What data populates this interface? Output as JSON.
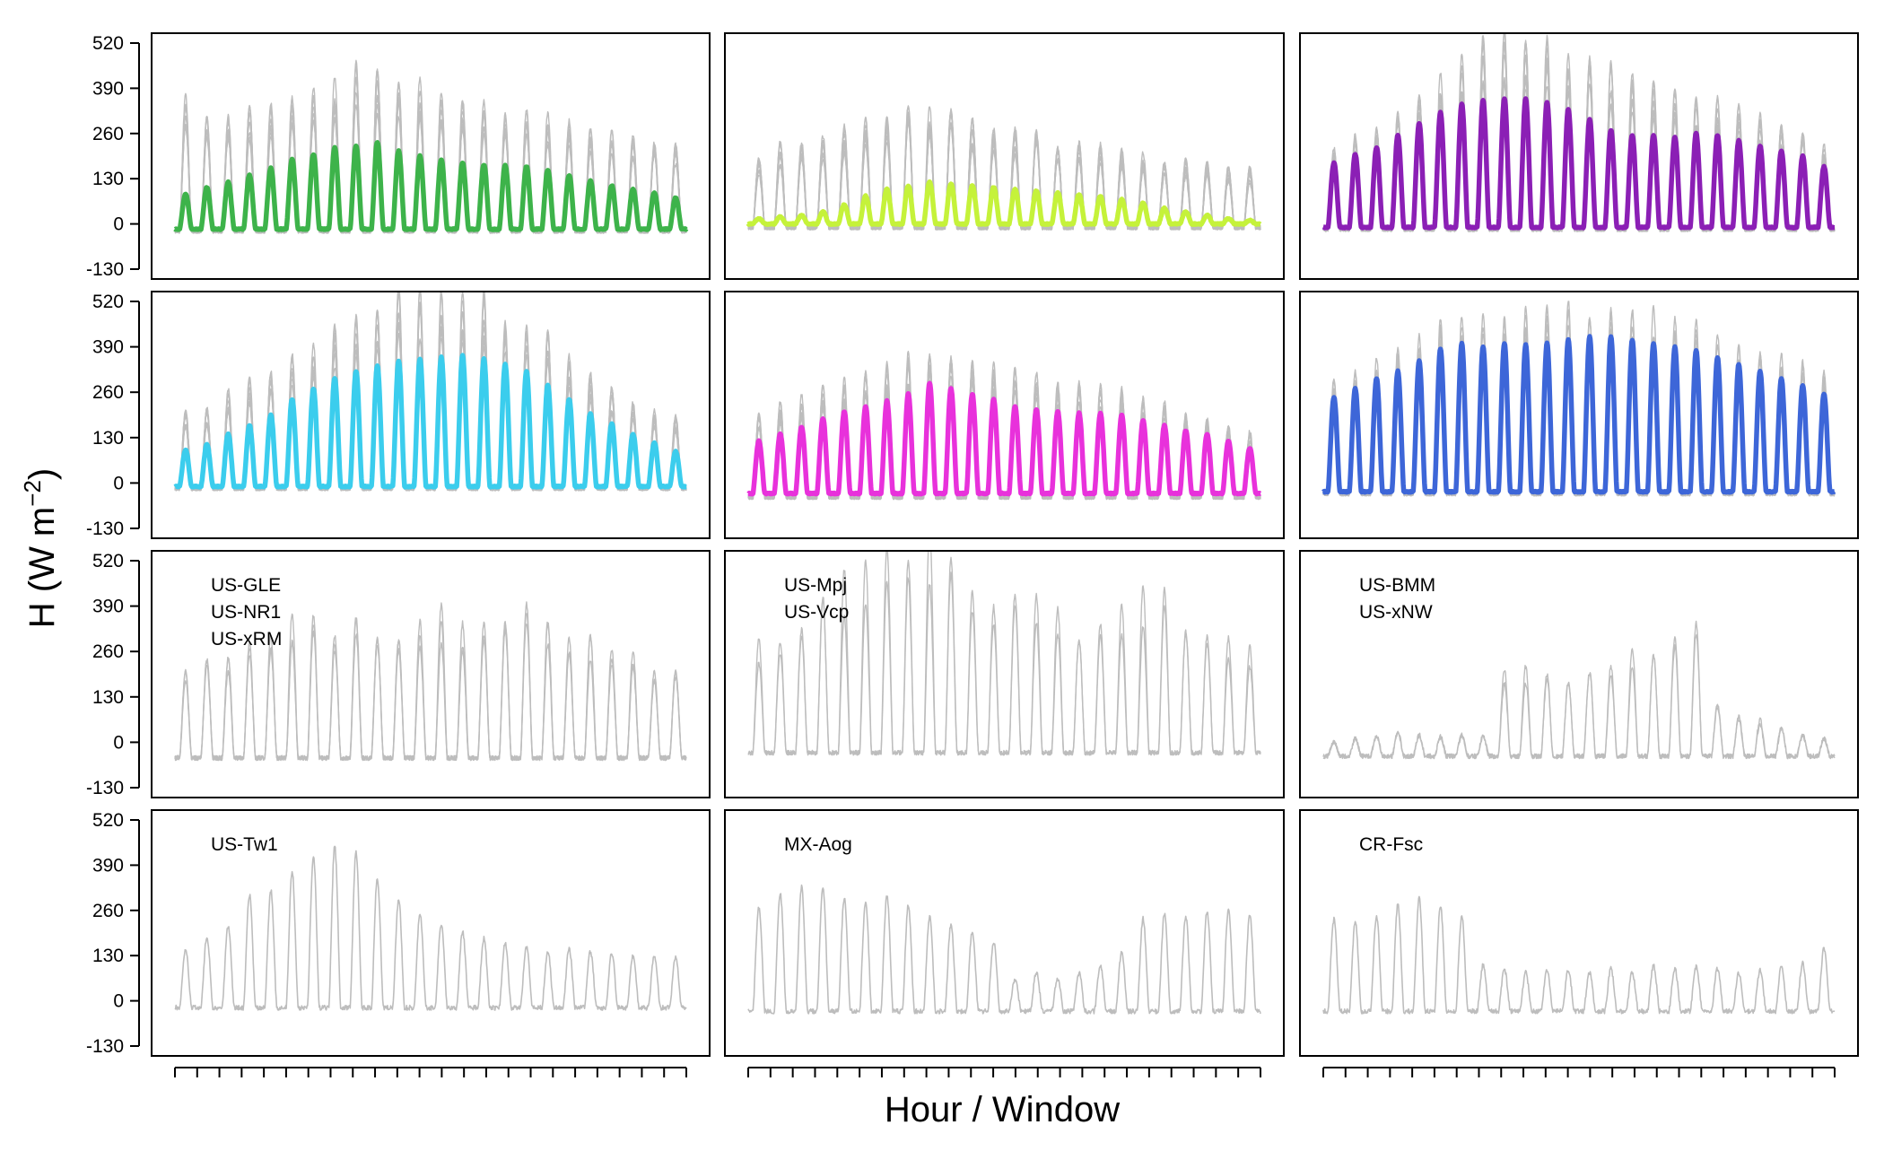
{
  "chart_data": {
    "type": "line",
    "layout": "4x3 grid of panels, shared axes",
    "xlabel": "Hour / Window",
    "ylabel_main": "H (W m",
    "ylabel_exponent": "−2",
    "ylabel_close": ")",
    "ylim": [
      -130,
      520
    ],
    "yticks": [
      "520",
      "390",
      "260",
      "130",
      "0",
      "-130"
    ],
    "ytick_values": [
      520,
      390,
      260,
      130,
      0,
      -130
    ],
    "x_tick_count": 24,
    "x_tick_labels_shown": false,
    "window_count": 24,
    "panels": [
      {
        "id": "r1c1",
        "row": 0,
        "col": 0,
        "color": "#3DB34A",
        "labels": [],
        "highlight_peaks": [
          85,
          105,
          120,
          140,
          160,
          185,
          200,
          220,
          225,
          235,
          210,
          195,
          185,
          175,
          170,
          168,
          165,
          155,
          140,
          125,
          110,
          100,
          90,
          75
        ],
        "highlight_base": -15,
        "gray_peaks": [
          320,
          300,
          280,
          290,
          300,
          330,
          340,
          360,
          400,
          380,
          370,
          360,
          340,
          320,
          310,
          300,
          290,
          270,
          260,
          240,
          230,
          220,
          210,
          200
        ],
        "gray_base": -20,
        "gray_lines": 8
      },
      {
        "id": "r1c2",
        "row": 0,
        "col": 1,
        "color": "#C5F23A",
        "labels": [],
        "highlight_peaks": [
          15,
          20,
          25,
          35,
          55,
          80,
          100,
          110,
          120,
          115,
          110,
          105,
          100,
          95,
          90,
          85,
          80,
          70,
          60,
          45,
          35,
          25,
          15,
          10
        ],
        "highlight_base": 0,
        "gray_peaks": [
          170,
          200,
          210,
          220,
          240,
          260,
          280,
          300,
          290,
          280,
          260,
          250,
          240,
          230,
          220,
          210,
          200,
          190,
          180,
          170,
          160,
          160,
          150,
          140
        ],
        "gray_base": -10,
        "gray_lines": 9
      },
      {
        "id": "r1c3",
        "row": 0,
        "col": 2,
        "color": "#8B1FB5",
        "labels": [],
        "highlight_peaks": [
          175,
          200,
          220,
          255,
          290,
          320,
          345,
          355,
          360,
          360,
          350,
          330,
          300,
          270,
          255,
          255,
          250,
          260,
          255,
          240,
          225,
          210,
          195,
          165
        ],
        "highlight_base": -10,
        "gray_peaks": [
          190,
          220,
          260,
          290,
          330,
          370,
          420,
          480,
          490,
          470,
          460,
          450,
          430,
          400,
          380,
          360,
          350,
          330,
          320,
          300,
          280,
          260,
          230,
          200
        ],
        "gray_base": -15,
        "gray_lines": 8
      },
      {
        "id": "r2c1",
        "row": 1,
        "col": 0,
        "color": "#3BCDED",
        "labels": [],
        "highlight_peaks": [
          95,
          110,
          140,
          165,
          195,
          240,
          270,
          300,
          320,
          335,
          350,
          355,
          360,
          365,
          355,
          340,
          320,
          280,
          240,
          200,
          170,
          140,
          115,
          90
        ],
        "highlight_base": -10,
        "gray_peaks": [
          180,
          200,
          230,
          260,
          290,
          320,
          350,
          400,
          430,
          460,
          490,
          480,
          470,
          480,
          470,
          450,
          420,
          380,
          320,
          280,
          240,
          210,
          190,
          170
        ],
        "gray_base": -15,
        "gray_lines": 8
      },
      {
        "id": "r2c2",
        "row": 1,
        "col": 1,
        "color": "#E831DB",
        "labels": [],
        "highlight_peaks": [
          120,
          140,
          160,
          185,
          205,
          220,
          235,
          255,
          285,
          270,
          255,
          240,
          220,
          210,
          205,
          200,
          200,
          195,
          180,
          165,
          150,
          140,
          120,
          100
        ],
        "highlight_base": -30,
        "gray_peaks": [
          180,
          200,
          220,
          240,
          260,
          280,
          300,
          320,
          340,
          330,
          320,
          300,
          280,
          270,
          260,
          250,
          240,
          230,
          220,
          200,
          180,
          160,
          140,
          130
        ],
        "gray_base": -40,
        "gray_lines": 8
      },
      {
        "id": "r2c3",
        "row": 1,
        "col": 2,
        "color": "#3D66D8",
        "labels": [],
        "highlight_peaks": [
          245,
          270,
          300,
          320,
          350,
          385,
          400,
          390,
          400,
          395,
          400,
          410,
          420,
          420,
          410,
          400,
          390,
          380,
          360,
          340,
          320,
          300,
          280,
          255
        ],
        "highlight_base": -25,
        "gray_peaks": [
          260,
          290,
          320,
          340,
          370,
          400,
          420,
          420,
          430,
          440,
          450,
          470,
          460,
          450,
          440,
          430,
          420,
          400,
          380,
          360,
          340,
          320,
          300,
          280
        ],
        "gray_base": -30,
        "gray_lines": 8
      },
      {
        "id": "r3c1",
        "row": 2,
        "col": 0,
        "color": null,
        "labels": [
          "US-GLE",
          "US-NR1",
          "US-xRM"
        ],
        "gray_peaks": [
          180,
          210,
          230,
          250,
          280,
          320,
          330,
          310,
          330,
          320,
          280,
          320,
          340,
          310,
          290,
          320,
          340,
          300,
          290,
          270,
          250,
          230,
          200,
          180
        ],
        "gray_base": -45,
        "gray_lines": 3
      },
      {
        "id": "r3c2",
        "row": 2,
        "col": 1,
        "color": null,
        "labels": [
          "US-Mpj",
          "US-Vcp"
        ],
        "gray_peaks": [
          260,
          290,
          330,
          380,
          420,
          460,
          480,
          500,
          520,
          540,
          420,
          400,
          380,
          360,
          350,
          340,
          350,
          360,
          390,
          380,
          350,
          320,
          280,
          240
        ],
        "gray_base": -30,
        "gray_lines": 2
      },
      {
        "id": "r3c3",
        "row": 2,
        "col": 2,
        "color": null,
        "labels": [
          "US-BMM",
          "US-xNW"
        ],
        "gray_peaks": [
          0,
          10,
          20,
          25,
          20,
          15,
          20,
          15,
          180,
          200,
          180,
          200,
          190,
          210,
          230,
          250,
          270,
          300,
          100,
          80,
          60,
          40,
          20,
          10
        ],
        "gray_base": -40,
        "gray_lines": 2
      },
      {
        "id": "r4c1",
        "row": 3,
        "col": 0,
        "color": null,
        "labels": [
          "US-Tw1"
        ],
        "gray_peaks": [
          140,
          180,
          220,
          300,
          320,
          380,
          410,
          440,
          420,
          360,
          290,
          250,
          220,
          200,
          180,
          160,
          150,
          140,
          150,
          140,
          140,
          130,
          130,
          120
        ],
        "gray_base": -20,
        "gray_lines": 1
      },
      {
        "id": "r4c2",
        "row": 3,
        "col": 1,
        "color": null,
        "labels": [
          "MX-Aog"
        ],
        "gray_peaks": [
          260,
          300,
          320,
          320,
          300,
          280,
          310,
          270,
          240,
          220,
          200,
          170,
          60,
          80,
          60,
          80,
          100,
          140,
          240,
          250,
          240,
          260,
          260,
          250
        ],
        "gray_base": -30,
        "gray_lines": 1
      },
      {
        "id": "r4c3",
        "row": 3,
        "col": 2,
        "color": null,
        "labels": [
          "CR-Fsc"
        ],
        "gray_peaks": [
          240,
          230,
          240,
          270,
          290,
          270,
          240,
          100,
          90,
          80,
          90,
          90,
          80,
          90,
          80,
          100,
          90,
          100,
          90,
          80,
          90,
          100,
          110,
          150
        ],
        "gray_base": -30,
        "gray_lines": 1
      }
    ]
  }
}
